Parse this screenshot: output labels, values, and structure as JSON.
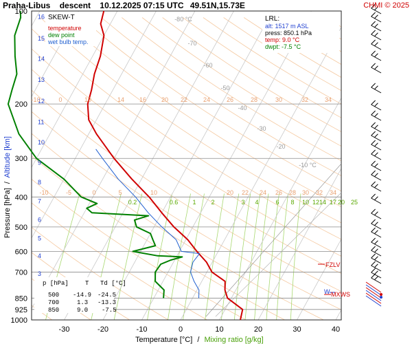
{
  "title": {
    "station": "Praha-Libus",
    "phase": "descent",
    "time": "10.12.2025 07:15 UTC",
    "position": "49.51N,15.73E"
  },
  "brand": "CHMI © 2025",
  "legend": {
    "heading": "SKEW-T",
    "entries": [
      {
        "label": "temperature",
        "color": "#d00000"
      },
      {
        "label": "dew point",
        "color": "#008000"
      },
      {
        "label": "wet bulb temp.",
        "color": "#1f5fd0"
      }
    ]
  },
  "lrl": {
    "heading": "LRL:",
    "lines": [
      {
        "text": "alt: 1517 m ASL",
        "color": "#1f3fd0"
      },
      {
        "text": "press: 850.1 hPa",
        "color": "#000000"
      },
      {
        "text": "temp: 9.0 °C",
        "color": "#d00000"
      },
      {
        "text": "dwpt: -7.5 °C",
        "color": "#008000"
      }
    ]
  },
  "axes": {
    "ylabel_pressure": "Pressure [hPa]",
    "ylabel_sep": " / ",
    "ylabel_altitude": "Altitude [km]",
    "xlabel_temp": "Temperature [°C]",
    "xlabel_sep": " / ",
    "xlabel_mix": "Mixing ratio [g/kg]"
  },
  "levels": {
    "fzlv": "FZLV",
    "mxws": "MXWS",
    "w": "W"
  },
  "table": {
    "headers": [
      "p [hPa]",
      "T",
      "Td [°C]"
    ],
    "rows": [
      [
        "500",
        "-14.9",
        "-24.5"
      ],
      [
        "700",
        "1.3",
        "-13.3"
      ],
      [
        "850",
        "9.0",
        "-7.5"
      ]
    ]
  },
  "chart_data": {
    "type": "line",
    "skew": true,
    "yscale": "log",
    "pressure_ticks": [
      100,
      200,
      300,
      400,
      500,
      600,
      700,
      850,
      925,
      1000
    ],
    "ylim": [
      1000,
      100
    ],
    "temperature_ticks": [
      -30,
      -20,
      -10,
      0,
      10,
      20,
      30,
      40
    ],
    "xlim": [
      -36,
      44
    ],
    "altitude_ticks_km": [
      2,
      3,
      4,
      5,
      6,
      7,
      8,
      9,
      10,
      11,
      12,
      13,
      14,
      15,
      16
    ],
    "mixing_ratio_labels": [
      "0.2",
      "0.6",
      "1",
      "2",
      "3",
      "4",
      "6",
      "8",
      "10",
      "12",
      "14",
      "17",
      "20",
      "25"
    ],
    "mixing_ratio_labels_upper": [
      "10",
      "14",
      "16",
      "20",
      "22",
      "24",
      "26",
      "28",
      "30",
      "32",
      "34"
    ],
    "mixing_ratio_labels_lower": [
      "10",
      "20",
      "22",
      "24",
      "26",
      "28",
      "30",
      "32",
      "34"
    ],
    "upper_left_labels": [
      "-10",
      "0",
      "5",
      "10"
    ],
    "lower_left_labels": [
      "-10",
      "-5",
      "0",
      "5"
    ],
    "isotherm_labels": [
      "-80 °C",
      "-70",
      "-60",
      "-50",
      "-40",
      "-30",
      "-20",
      "-10 °C"
    ],
    "series": [
      {
        "name": "temperature",
        "color": "#d00000",
        "points": [
          [
            1000,
            15.4
          ],
          [
            925,
            14.5
          ],
          [
            850,
            9.0
          ],
          [
            800,
            7.2
          ],
          [
            750,
            6.0
          ],
          [
            700,
            1.3
          ],
          [
            650,
            -1.5
          ],
          [
            600,
            -5.5
          ],
          [
            550,
            -9.5
          ],
          [
            500,
            -14.9
          ],
          [
            450,
            -20.0
          ],
          [
            400,
            -25.5
          ],
          [
            350,
            -32.5
          ],
          [
            300,
            -40.0
          ],
          [
            250,
            -48.0
          ],
          [
            225,
            -52.0
          ],
          [
            200,
            -54.5
          ],
          [
            180,
            -55.5
          ],
          [
            160,
            -57.0
          ],
          [
            140,
            -58.0
          ],
          [
            120,
            -60.0
          ],
          [
            110,
            -62.5
          ],
          [
            100,
            -63.5
          ]
        ]
      },
      {
        "name": "dew point",
        "color": "#008000",
        "points": [
          [
            850,
            -7.5
          ],
          [
            800,
            -8.5
          ],
          [
            750,
            -12.0
          ],
          [
            700,
            -13.3
          ],
          [
            660,
            -13.0
          ],
          [
            640,
            -11.0
          ],
          [
            625,
            -8.5
          ],
          [
            620,
            -15.0
          ],
          [
            600,
            -22.0
          ],
          [
            575,
            -17.0
          ],
          [
            550,
            -18.5
          ],
          [
            525,
            -20.0
          ],
          [
            500,
            -24.5
          ],
          [
            475,
            -26.0
          ],
          [
            460,
            -23.0
          ],
          [
            450,
            -38.0
          ],
          [
            435,
            -40.0
          ],
          [
            420,
            -38.0
          ],
          [
            400,
            -43.0
          ],
          [
            350,
            -50.0
          ],
          [
            300,
            -60.0
          ],
          [
            250,
            -68.0
          ],
          [
            200,
            -75.0
          ],
          [
            180,
            -76.0
          ],
          [
            160,
            -77.0
          ],
          [
            140,
            -80.0
          ],
          [
            120,
            -83.0
          ],
          [
            105,
            -84.0
          ],
          [
            100,
            -85.0
          ]
        ]
      },
      {
        "name": "wet bulb temp.",
        "color": "#1f5fd0",
        "points": [
          [
            850,
            1.6
          ],
          [
            800,
            0.5
          ],
          [
            750,
            -2.0
          ],
          [
            700,
            -4.2
          ],
          [
            650,
            -5.0
          ],
          [
            610,
            -4.5
          ],
          [
            600,
            -9.5
          ],
          [
            550,
            -12.5
          ],
          [
            500,
            -18.0
          ],
          [
            450,
            -23.5
          ],
          [
            400,
            -29.0
          ],
          [
            350,
            -36.0
          ],
          [
            300,
            -43.0
          ],
          [
            280,
            -46.0
          ]
        ]
      }
    ]
  }
}
